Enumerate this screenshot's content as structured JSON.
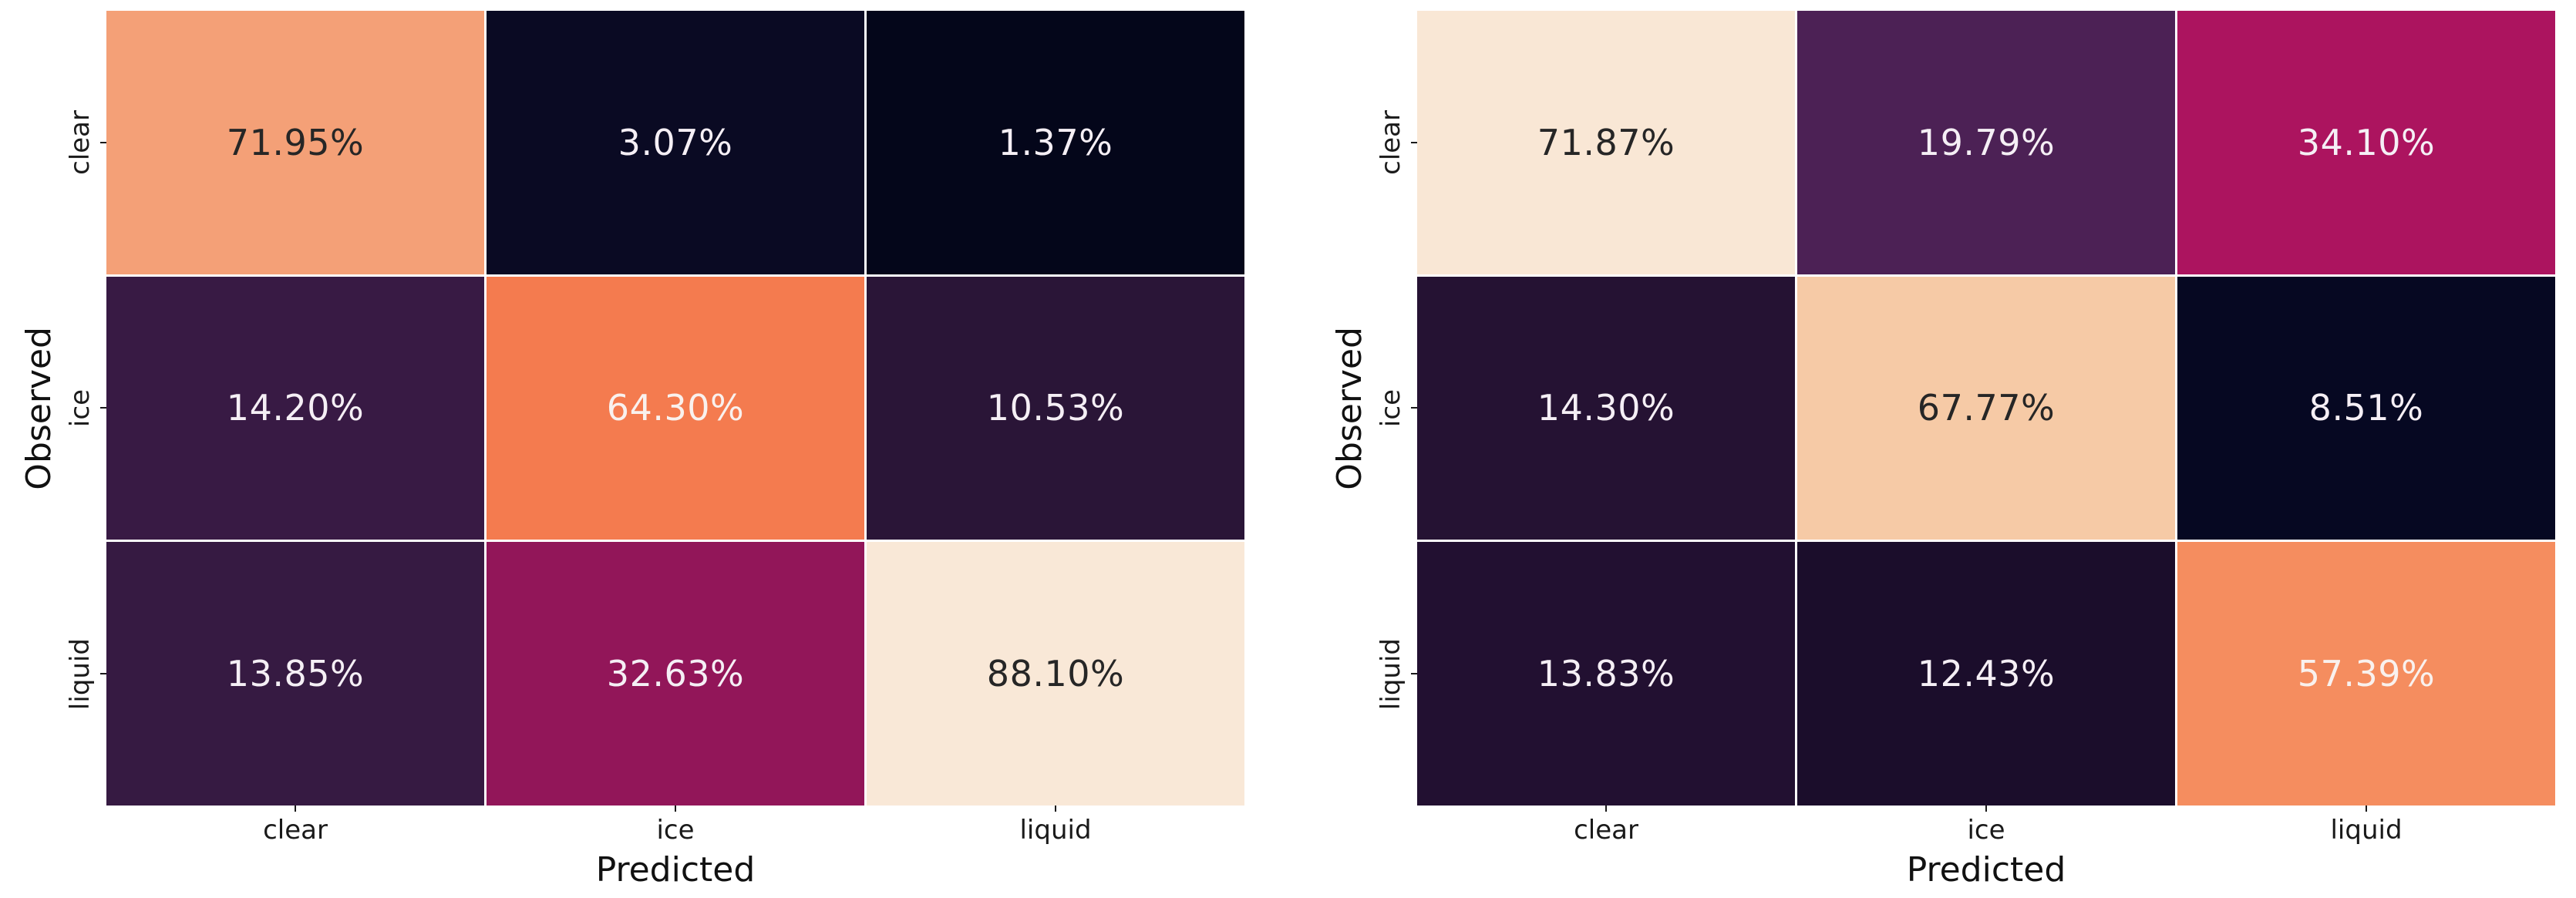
{
  "figure": {
    "background": "#ffffff",
    "tick_color": "#1a1a1a"
  },
  "panels": [
    {
      "name": "left-confusion-matrix",
      "ylabel": "Observed",
      "xlabel": "Predicted",
      "row_labels": [
        "clear",
        "ice",
        "liquid"
      ],
      "col_labels": [
        "clear",
        "ice",
        "liquid"
      ],
      "cells": [
        {
          "label": "71.95%",
          "bg": "#F4A077",
          "fg": "#262626"
        },
        {
          "label": "3.07%",
          "bg": "#0A0A23",
          "fg": "#F5EFF5"
        },
        {
          "label": "1.37%",
          "bg": "#04061A",
          "fg": "#F5EFF5"
        },
        {
          "label": "14.20%",
          "bg": "#381A44",
          "fg": "#F5EFF5"
        },
        {
          "label": "64.30%",
          "bg": "#F47B4F",
          "fg": "#F9F1EE"
        },
        {
          "label": "10.53%",
          "bg": "#2A1537",
          "fg": "#F5EFF5"
        },
        {
          "label": "13.85%",
          "bg": "#361A42",
          "fg": "#F5EFF5"
        },
        {
          "label": "32.63%",
          "bg": "#921659",
          "fg": "#F5EFF5"
        },
        {
          "label": "88.10%",
          "bg": "#F9E8D7",
          "fg": "#262626"
        }
      ]
    },
    {
      "name": "right-confusion-matrix",
      "ylabel": "Observed",
      "xlabel": "Predicted",
      "row_labels": [
        "clear",
        "ice",
        "liquid"
      ],
      "col_labels": [
        "clear",
        "ice",
        "liquid"
      ],
      "cells": [
        {
          "label": "71.87%",
          "bg": "#F9E7D5",
          "fg": "#262626"
        },
        {
          "label": "19.79%",
          "bg": "#4C2155",
          "fg": "#F5EFF5"
        },
        {
          "label": "34.10%",
          "bg": "#AC145F",
          "fg": "#F5EFF5"
        },
        {
          "label": "14.30%",
          "bg": "#251233",
          "fg": "#F5EFF5"
        },
        {
          "label": "67.77%",
          "bg": "#F6CAA6",
          "fg": "#262626"
        },
        {
          "label": "8.51%",
          "bg": "#060822",
          "fg": "#F5EFF5"
        },
        {
          "label": "13.83%",
          "bg": "#221031",
          "fg": "#F5EFF5"
        },
        {
          "label": "12.43%",
          "bg": "#1B0D2B",
          "fg": "#F5EFF5"
        },
        {
          "label": "57.39%",
          "bg": "#F58D5F",
          "fg": "#F9F1EE"
        }
      ]
    }
  ],
  "chart_data": [
    {
      "type": "heatmap",
      "title": "",
      "xlabel": "Predicted",
      "ylabel": "Observed",
      "x_categories": [
        "clear",
        "ice",
        "liquid"
      ],
      "y_categories": [
        "clear",
        "ice",
        "liquid"
      ],
      "values": [
        [
          71.95,
          3.07,
          1.37
        ],
        [
          14.2,
          64.3,
          10.53
        ],
        [
          13.85,
          32.63,
          88.1
        ]
      ],
      "value_format": "percent",
      "annotations": [
        [
          "71.95%",
          "3.07%",
          "1.37%"
        ],
        [
          "14.20%",
          "64.30%",
          "10.53%"
        ],
        [
          "13.85%",
          "32.63%",
          "88.10%"
        ]
      ],
      "colormap": "rocket",
      "color_scale_range": [
        1.37,
        88.1
      ],
      "colorbar": false,
      "grid": false,
      "legend_position": "none"
    },
    {
      "type": "heatmap",
      "title": "",
      "xlabel": "Predicted",
      "ylabel": "Observed",
      "x_categories": [
        "clear",
        "ice",
        "liquid"
      ],
      "y_categories": [
        "clear",
        "ice",
        "liquid"
      ],
      "values": [
        [
          71.87,
          19.79,
          34.1
        ],
        [
          14.3,
          67.77,
          8.51
        ],
        [
          13.83,
          12.43,
          57.39
        ]
      ],
      "value_format": "percent",
      "annotations": [
        [
          "71.87%",
          "19.79%",
          "34.10%"
        ],
        [
          "14.30%",
          "67.77%",
          "8.51%"
        ],
        [
          "13.83%",
          "12.43%",
          "57.39%"
        ]
      ],
      "colormap": "rocket",
      "color_scale_range": [
        8.51,
        71.87
      ],
      "colorbar": false,
      "grid": false,
      "legend_position": "none"
    }
  ]
}
